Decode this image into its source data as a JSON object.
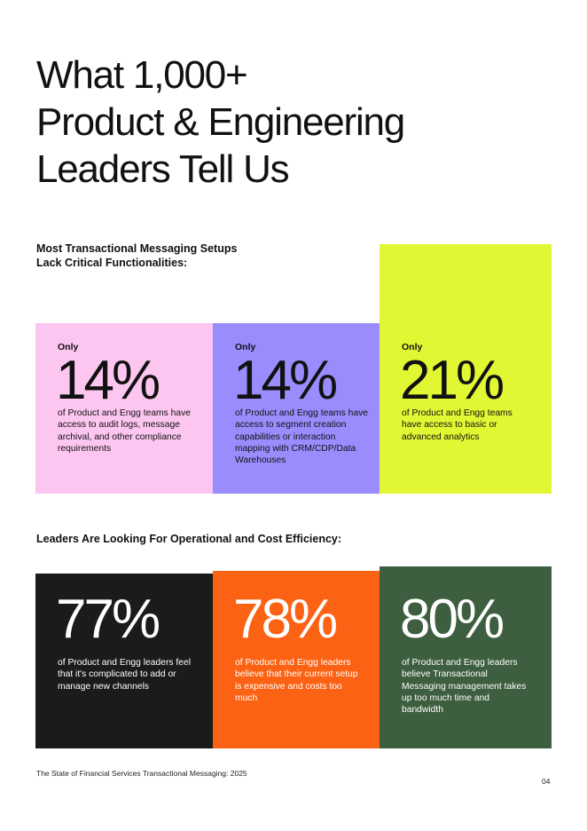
{
  "headline": {
    "line1": "What 1,000+",
    "line2": "Product & Engineering",
    "line3": "Leaders Tell Us"
  },
  "section1": {
    "heading_line1": "Most Transactional Messaging Setups",
    "heading_line2": "Lack Critical Functionalities:",
    "cards": [
      {
        "prefix": "Only",
        "value": "14%",
        "description": "of Product and Engg teams have access to audit logs, message archival, and other compliance requirements",
        "bg_color": "#fcc6f0",
        "text_color": "#111111"
      },
      {
        "prefix": "Only",
        "value": "14%",
        "description": "of Product and Engg teams have access to segment creation capabilities or interaction mapping with CRM/CDP/Data Warehouses",
        "bg_color": "#9a8cfd",
        "text_color": "#111111"
      },
      {
        "prefix": "Only",
        "value": "21%",
        "description": "of Product and Engg teams have access to basic or advanced analytics",
        "bg_color": "#e1f733",
        "text_color": "#111111"
      }
    ]
  },
  "section2": {
    "heading": "Leaders Are Looking For Operational and Cost Efficiency:",
    "cards": [
      {
        "value": "77%",
        "description": "of Product and Engg leaders feel that it's complicated to add or manage new channels",
        "bg_color": "#1b1b1b",
        "text_color": "#ffffff"
      },
      {
        "value": "78%",
        "description": "of Product and Engg leaders believe that their current setup is expensive and costs too much",
        "bg_color": "#fc6213",
        "text_color": "#ffffff"
      },
      {
        "value": "80%",
        "description": "of Product and Engg leaders believe Transactional Messaging management takes up too much time and bandwidth",
        "bg_color": "#3d5e3f",
        "text_color": "#ffffff"
      }
    ]
  },
  "footer": {
    "source_text": "The State of Financial Services Transactional Messaging: 2025",
    "page_number": "04"
  }
}
